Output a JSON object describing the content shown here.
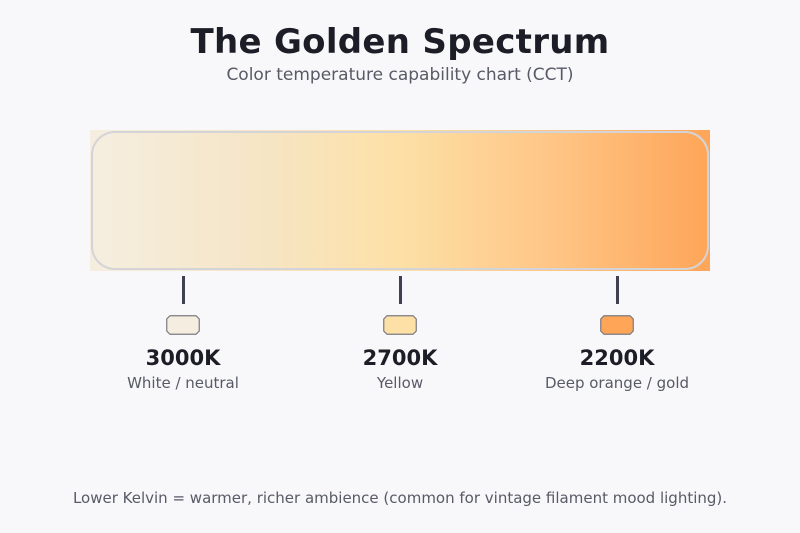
{
  "header": {
    "title": "The Golden Spectrum",
    "subtitle": "Color temperature capability chart (CCT)"
  },
  "spectrum": {
    "gradient_stops": [
      "#f5eee0",
      "#f5e6c8",
      "#fde0a6",
      "#fec585",
      "#fea558"
    ]
  },
  "markers": [
    {
      "kelvin": "3000K",
      "description": "White / neutral",
      "color": "#f5eee0"
    },
    {
      "kelvin": "2700K",
      "description": "Yellow",
      "color": "#fde0a6"
    },
    {
      "kelvin": "2200K",
      "description": "Deep orange / gold",
      "color": "#fea558"
    }
  ],
  "footer": {
    "note": "Lower Kelvin = warmer, richer ambience (common for vintage filament mood lighting)."
  }
}
